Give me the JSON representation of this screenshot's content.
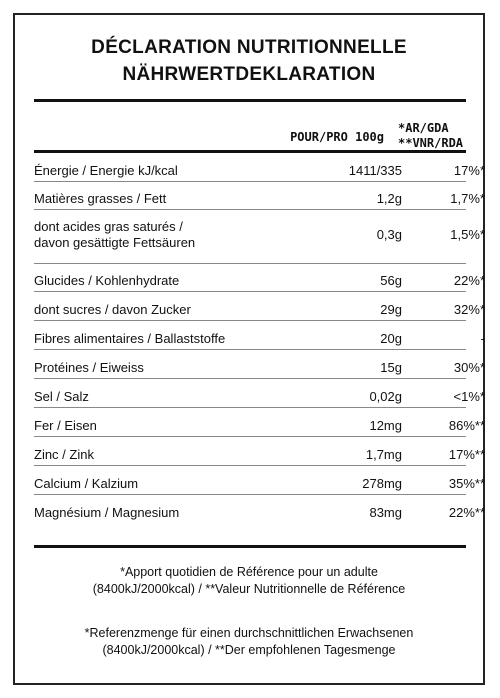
{
  "title_fr": "DÉCLARATION NUTRITIONNELLE",
  "title_de": "NÄHRWERTDEKLARATION",
  "header": {
    "per": "POUR/PRO 100g",
    "rda_line1": "*AR/GDA",
    "rda_line2": "**VNR/RDA"
  },
  "rows": [
    {
      "label": "Énergie / Energie kJ/kcal",
      "value": "1411/335",
      "pct": "17%*"
    },
    {
      "label": "Matières grasses / Fett",
      "value": "1,2g",
      "pct": "1,7%*"
    },
    {
      "label": "dont acides gras saturés /",
      "label2": "davon gesättigte Fettsäuren",
      "value": "0,3g",
      "pct": "1,5%*"
    },
    {
      "label": "Glucides / Kohlenhydrate",
      "value": "56g",
      "pct": "22%*"
    },
    {
      "label": "dont sucres / davon Zucker",
      "value": "29g",
      "pct": "32%*"
    },
    {
      "label": "Fibres alimentaires / Ballaststoffe",
      "value": "20g",
      "pct": "-"
    },
    {
      "label": "Protéines / Eiweiss",
      "value": "15g",
      "pct": "30%*"
    },
    {
      "label": "Sel / Salz",
      "value": "0,02g",
      "pct": "<1%*"
    },
    {
      "label": "Fer / Eisen",
      "value": "12mg",
      "pct": "86%**"
    },
    {
      "label": "Zinc / Zink",
      "value": "1,7mg",
      "pct": "17%**"
    },
    {
      "label": "Calcium / Kalzium",
      "value": "278mg",
      "pct": "35%**"
    },
    {
      "label": "Magnésium / Magnesium",
      "value": "83mg",
      "pct": "22%**"
    }
  ],
  "footnotes": {
    "fr_line1": "*Apport quotidien de Référence pour un adulte",
    "fr_line2": "(8400kJ/2000kcal) / **Valeur Nutritionnelle de Référence",
    "de_line1": "*Referenzmenge für einen durchschnittlichen Erwachsenen",
    "de_line2": "(8400kJ/2000kcal) / **Der empfohlenen Tagesmenge"
  }
}
